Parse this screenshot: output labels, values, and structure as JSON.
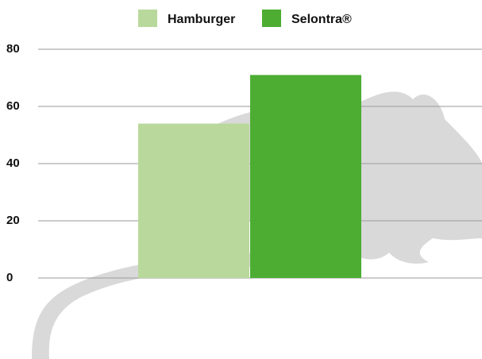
{
  "chart_data": {
    "type": "bar",
    "categories": [
      null
    ],
    "series": [
      {
        "name": "Hamburger",
        "color": "#b9d99c",
        "values": [
          54
        ]
      },
      {
        "name": "Selontra®",
        "color": "#4dad33",
        "values": [
          71
        ]
      }
    ],
    "ylim": [
      0,
      80
    ],
    "yticks": [
      0,
      20,
      40,
      60,
      80
    ],
    "grid": true,
    "legend": "top"
  }
}
